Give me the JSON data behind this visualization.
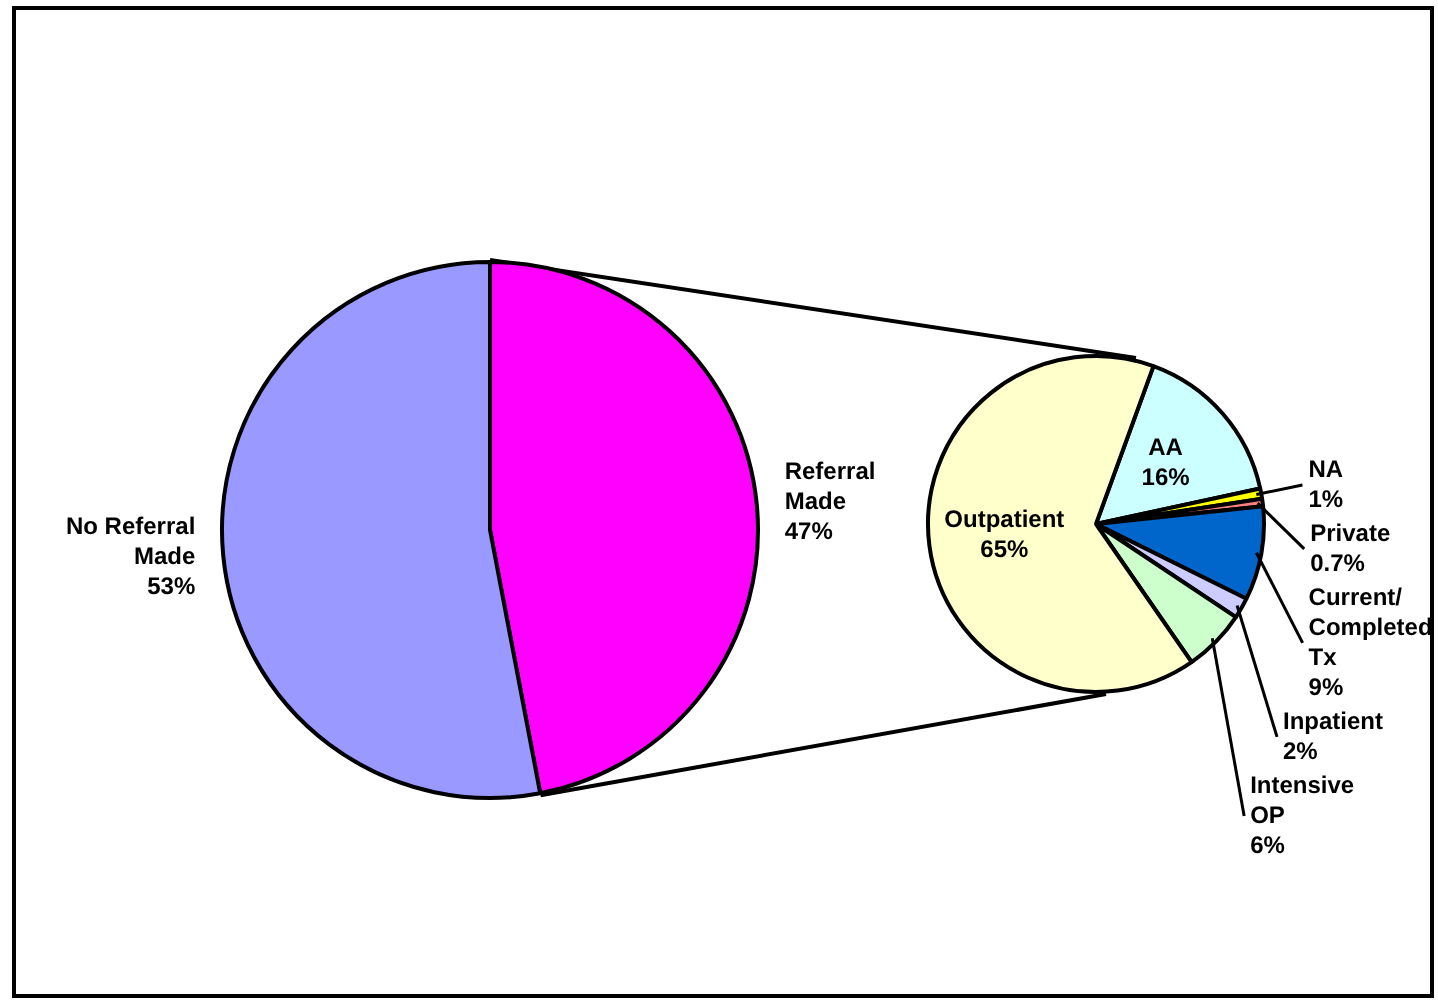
{
  "chart_data": [
    {
      "type": "pie",
      "categories": [
        "Referral Made",
        "No Referral Made"
      ],
      "values": [
        47,
        53
      ],
      "value_labels": [
        "47%",
        "53%"
      ],
      "colors": [
        "#ff00ff",
        "#9999ff"
      ],
      "legend": false
    },
    {
      "type": "pie",
      "categories": [
        "AA",
        "NA",
        "Private",
        "Current/ Completed Tx",
        "Inpatient",
        "Intensive OP",
        "Outpatient"
      ],
      "values": [
        16,
        1,
        0.7,
        9,
        2,
        6,
        65
      ],
      "value_labels": [
        "16%",
        "1%",
        "0.7%",
        "9%",
        "2%",
        "6%",
        "65%"
      ],
      "colors": [
        "#ccffff",
        "#ffff00",
        "#ff8080",
        "#0066cc",
        "#ccccff",
        "#ccffcc",
        "#ffffcc"
      ],
      "legend": false
    }
  ]
}
